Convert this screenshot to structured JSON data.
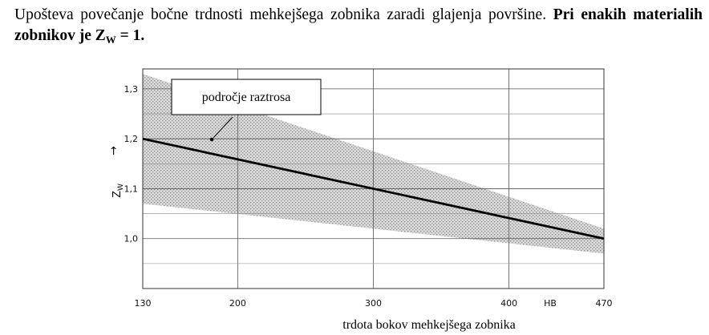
{
  "intro": {
    "text_plain": "Upošteva povečanje bočne trdnosti mehkejšega zobnika zaradi glajenja površine. ",
    "text_bold_pre": "Pri enakih materialih zobnikov je Z",
    "text_bold_sub": "W",
    "text_bold_post": " = 1."
  },
  "chart_data": {
    "type": "line",
    "x_axis_label": "trdota bokov mehkejšega zobnika",
    "x_unit_label": "HB",
    "y_axis_label_symbol": "Z",
    "y_axis_label_sub": "W",
    "y_axis_arrow": "→",
    "x_ticks": [
      130,
      200,
      300,
      400,
      470
    ],
    "x_tick_labels": [
      "130",
      "200",
      "300",
      "400",
      "470"
    ],
    "y_ticks": [
      1.0,
      1.1,
      1.2,
      1.3
    ],
    "y_tick_labels": [
      "1,0",
      "1,1",
      "1,2",
      "1,3"
    ],
    "xlim": [
      130,
      470
    ],
    "ylim": [
      0.9,
      1.34
    ],
    "grid": true,
    "series": [
      {
        "x": [
          130,
          470
        ],
        "y": [
          1.2,
          1.0
        ]
      }
    ],
    "scatter_band": {
      "upper": {
        "x": [
          130,
          470
        ],
        "y": [
          1.33,
          1.02
        ]
      },
      "lower": {
        "x": [
          130,
          470
        ],
        "y": [
          1.07,
          0.97
        ]
      }
    },
    "annotation": {
      "label": "področje raztrosa"
    }
  }
}
